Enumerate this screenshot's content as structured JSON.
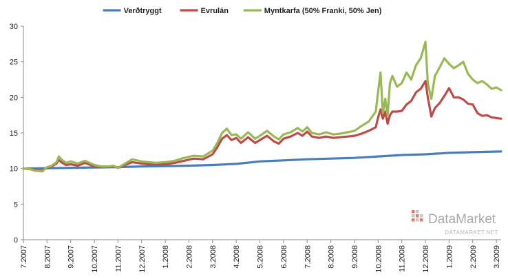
{
  "chart_data": {
    "type": "line",
    "title": "",
    "xlabel": "",
    "ylabel": "",
    "ylim": [
      0,
      30
    ],
    "yticks": [
      "0",
      "5",
      "10",
      "15",
      "20",
      "25",
      "30"
    ],
    "xticks": [
      "7.2007",
      "8.2007",
      "9.2007",
      "10.2007",
      "11.2007",
      "12.2007",
      "1.2008",
      "2.2008",
      "3.2008",
      "4.2008",
      "5.2008",
      "6.2008",
      "7.2008",
      "8.2008",
      "9.2008",
      "10.2008",
      "11.2008",
      "12.2008",
      "1.2009",
      "2.2009",
      "3.2009"
    ],
    "grid": false,
    "legend_position": "top",
    "series": [
      {
        "name": "Verðtryggt",
        "color": "#4a7ebb",
        "x": [
          0,
          1,
          2,
          3,
          4,
          5,
          6,
          7,
          8,
          9,
          10,
          11,
          12,
          13,
          14,
          15,
          16,
          17,
          18,
          19,
          20.2
        ],
        "y": [
          10.0,
          10.05,
          10.1,
          10.15,
          10.2,
          10.3,
          10.35,
          10.4,
          10.5,
          10.65,
          11.0,
          11.15,
          11.3,
          11.4,
          11.5,
          11.7,
          11.9,
          12.0,
          12.2,
          12.3,
          12.4
        ]
      },
      {
        "name": "Evrulán",
        "color": "#be4b48",
        "x": [
          0,
          0.3,
          0.5,
          0.8,
          1.0,
          1.2,
          1.4,
          1.5,
          1.6,
          1.8,
          2.0,
          2.3,
          2.6,
          3.0,
          3.3,
          3.6,
          3.8,
          4.0,
          4.3,
          4.6,
          5.0,
          5.3,
          5.6,
          6.0,
          6.4,
          6.8,
          7.2,
          7.6,
          8.0,
          8.2,
          8.4,
          8.6,
          8.8,
          9.0,
          9.2,
          9.5,
          9.8,
          10.0,
          10.3,
          10.6,
          10.8,
          11.0,
          11.3,
          11.6,
          11.8,
          12.0,
          12.2,
          12.5,
          12.8,
          13.1,
          13.4,
          13.7,
          14.0,
          14.3,
          14.6,
          14.9,
          15.0,
          15.1,
          15.2,
          15.3,
          15.4,
          15.5,
          15.6,
          15.8,
          16.0,
          16.2,
          16.4,
          16.6,
          16.8,
          17.0,
          17.1,
          17.25,
          17.4,
          17.6,
          17.8,
          18.0,
          18.2,
          18.4,
          18.6,
          18.8,
          19.0,
          19.2,
          19.4,
          19.6,
          19.8,
          20.0,
          20.2
        ],
        "y": [
          10.0,
          9.9,
          9.8,
          9.7,
          10.1,
          10.3,
          10.7,
          11.2,
          10.9,
          10.5,
          10.6,
          10.4,
          10.8,
          10.3,
          10.2,
          10.2,
          10.3,
          10.1,
          10.5,
          10.9,
          10.7,
          10.6,
          10.6,
          10.6,
          10.8,
          11.1,
          11.4,
          11.3,
          12.0,
          13.0,
          14.2,
          14.7,
          14.0,
          14.3,
          13.6,
          14.4,
          13.6,
          14.0,
          14.6,
          13.8,
          13.5,
          14.2,
          14.5,
          15.0,
          14.6,
          15.2,
          14.5,
          14.3,
          14.5,
          14.3,
          14.4,
          14.5,
          14.6,
          14.9,
          15.3,
          15.8,
          17.2,
          18.3,
          17.0,
          18.0,
          16.3,
          17.5,
          18.0,
          18.0,
          18.1,
          19.0,
          19.5,
          20.7,
          21.2,
          22.3,
          20.0,
          17.3,
          18.5,
          19.2,
          20.2,
          21.3,
          20.0,
          20.0,
          19.7,
          19.1,
          19.0,
          17.8,
          17.4,
          17.5,
          17.2,
          17.1,
          17.0
        ]
      },
      {
        "name": "Myntkarfa (50% Franki, 50% Jen)",
        "color": "#98b954",
        "x": [
          0,
          0.3,
          0.5,
          0.8,
          1.0,
          1.2,
          1.4,
          1.5,
          1.6,
          1.8,
          2.0,
          2.3,
          2.6,
          3.0,
          3.3,
          3.6,
          3.8,
          4.0,
          4.3,
          4.6,
          5.0,
          5.3,
          5.6,
          6.0,
          6.4,
          6.8,
          7.2,
          7.6,
          8.0,
          8.2,
          8.4,
          8.6,
          8.8,
          9.0,
          9.2,
          9.5,
          9.8,
          10.0,
          10.3,
          10.6,
          10.8,
          11.0,
          11.3,
          11.6,
          11.8,
          12.0,
          12.2,
          12.5,
          12.8,
          13.1,
          13.4,
          13.7,
          14.0,
          14.3,
          14.6,
          14.9,
          15.0,
          15.1,
          15.2,
          15.3,
          15.4,
          15.5,
          15.6,
          15.8,
          16.0,
          16.2,
          16.4,
          16.6,
          16.8,
          17.0,
          17.1,
          17.25,
          17.4,
          17.6,
          17.8,
          18.0,
          18.2,
          18.4,
          18.6,
          18.8,
          19.0,
          19.2,
          19.4,
          19.6,
          19.8,
          20.0,
          20.2
        ],
        "y": [
          10.0,
          9.9,
          9.7,
          9.6,
          10.2,
          10.4,
          10.9,
          11.7,
          11.3,
          10.8,
          11.0,
          10.7,
          11.1,
          10.5,
          10.3,
          10.3,
          10.4,
          10.1,
          10.7,
          11.3,
          11.0,
          10.9,
          10.8,
          10.9,
          11.1,
          11.5,
          11.8,
          11.7,
          12.5,
          13.6,
          15.0,
          15.6,
          14.7,
          14.8,
          14.2,
          15.1,
          14.2,
          14.6,
          15.3,
          14.5,
          14.1,
          14.8,
          15.1,
          15.7,
          15.2,
          15.8,
          15.0,
          14.8,
          15.1,
          14.8,
          14.9,
          15.1,
          15.3,
          16.0,
          16.6,
          18.0,
          20.8,
          23.5,
          17.8,
          19.8,
          17.5,
          22.0,
          23.0,
          21.5,
          22.0,
          23.5,
          22.5,
          24.5,
          25.5,
          27.8,
          22.0,
          19.8,
          23.0,
          24.2,
          25.5,
          24.7,
          24.1,
          24.5,
          25.0,
          23.3,
          22.5,
          22.0,
          22.3,
          21.8,
          21.2,
          21.4,
          21.0
        ]
      }
    ]
  },
  "watermark": {
    "name": "DataMarket",
    "url": "DATAMARKET.NET",
    "color": "#b0b0b0",
    "accent": "#e07a70"
  }
}
